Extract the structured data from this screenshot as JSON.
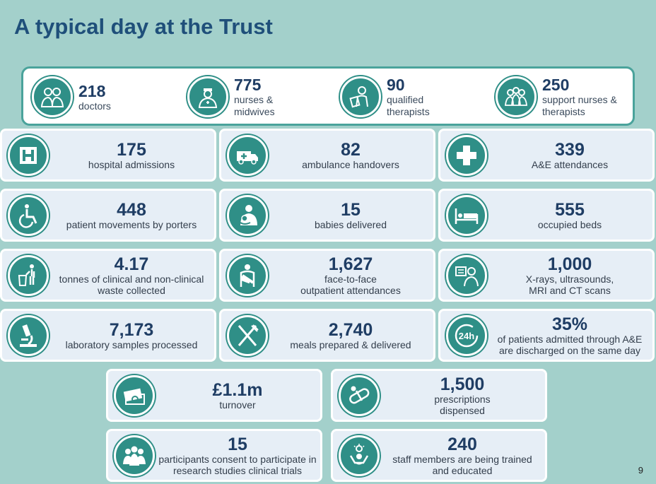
{
  "title": "A typical day at the Trust",
  "page_number": "9",
  "staff": [
    {
      "value": "218",
      "label_lines": [
        "doctors"
      ],
      "icon": "doctors-icon"
    },
    {
      "value": "775",
      "label_lines": [
        "nurses &",
        "midwives"
      ],
      "icon": "nurse-icon"
    },
    {
      "value": "90",
      "label_lines": [
        "qualified",
        "therapists"
      ],
      "icon": "therapist-icon"
    },
    {
      "value": "250",
      "label_lines": [
        "support nurses &",
        "therapists"
      ],
      "icon": "support-staff-icon"
    }
  ],
  "stats": [
    {
      "value": "175",
      "label_lines": [
        "hospital admissions"
      ],
      "icon": "hospital-icon"
    },
    {
      "value": "82",
      "label_lines": [
        "ambulance handovers"
      ],
      "icon": "ambulance-icon"
    },
    {
      "value": "339",
      "label_lines": [
        "A&E attendances"
      ],
      "icon": "medical-cross-icon"
    },
    {
      "value": "448",
      "label_lines": [
        "patient movements by porters"
      ],
      "icon": "wheelchair-icon"
    },
    {
      "value": "15",
      "label_lines": [
        "babies delivered"
      ],
      "icon": "mother-baby-icon"
    },
    {
      "value": "555",
      "label_lines": [
        "occupied beds"
      ],
      "icon": "bed-icon"
    },
    {
      "value": "4.17",
      "label_lines": [
        "tonnes of clinical and non-clinical",
        "waste collected"
      ],
      "icon": "waste-bin-icon"
    },
    {
      "value": "1,627",
      "label_lines": [
        "face-to-face",
        "outpatient attendances"
      ],
      "icon": "arm-sling-icon"
    },
    {
      "value": "1,000",
      "label_lines": [
        "X-rays, ultrasounds,",
        "MRI and CT scans"
      ],
      "icon": "xray-icon"
    },
    {
      "value": "7,173",
      "label_lines": [
        "laboratory samples processed"
      ],
      "icon": "microscope-icon"
    },
    {
      "value": "2,740",
      "label_lines": [
        "meals prepared & delivered"
      ],
      "icon": "cutlery-icon"
    },
    {
      "value": "35%",
      "label_lines": [
        "of patients admitted through A&E",
        "are discharged on the same day"
      ],
      "icon": "24h-icon"
    },
    {
      "value": "£1.1m",
      "label_lines": [
        "turnover"
      ],
      "icon": "money-icon"
    },
    {
      "value": "1,500",
      "label_lines": [
        "prescriptions",
        "dispensed"
      ],
      "icon": "pill-icon"
    },
    {
      "value": "15",
      "label_lines": [
        "participants consent to participate in",
        "research studies clinical trials"
      ],
      "icon": "research-group-icon"
    },
    {
      "value": "240",
      "label_lines": [
        "staff members are being trained",
        "and educated"
      ],
      "icon": "training-icon"
    }
  ],
  "icons": {
    "24h_text": "24h"
  }
}
